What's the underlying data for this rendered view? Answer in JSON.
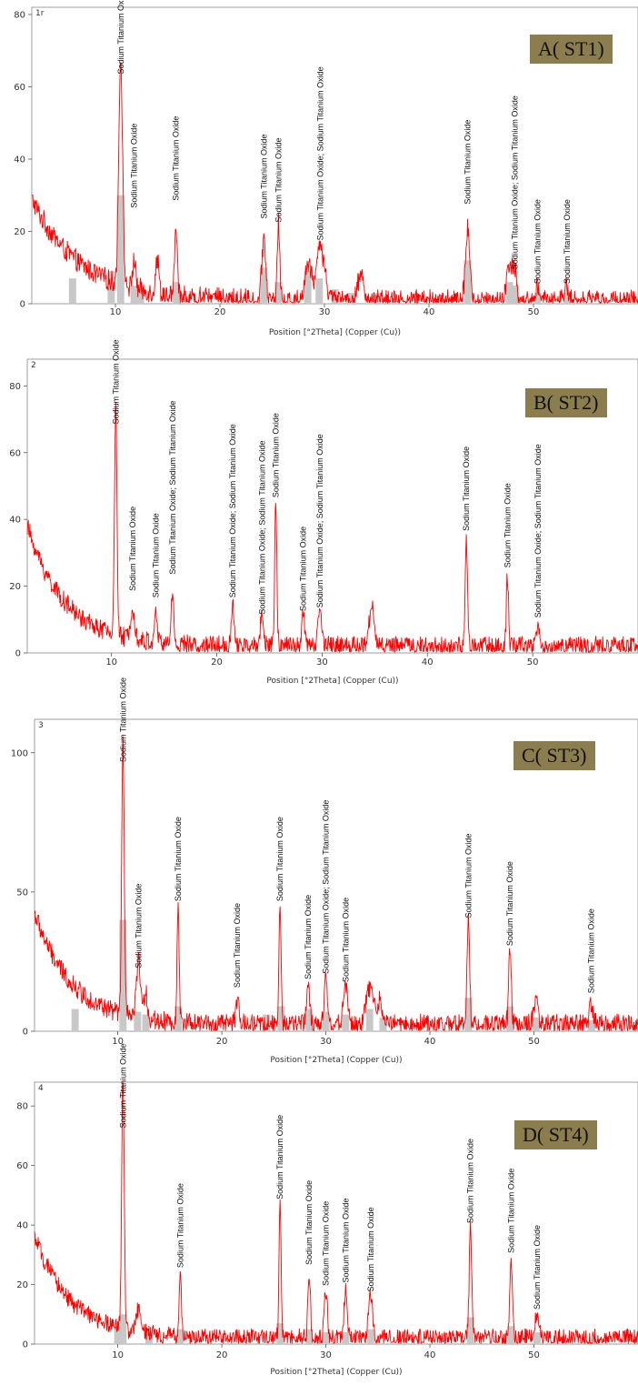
{
  "colors": {
    "trace": "#ff0000",
    "reference_bars": "#c8c8c8",
    "label_bg": "#8b7d4e"
  },
  "chart_data": [
    {
      "type": "line",
      "panel_label": "A( ST1)",
      "corner_label": "1r",
      "xlabel": "Position [°2Theta] (Copper (Cu))",
      "xlim": [
        2,
        60
      ],
      "ylim": [
        0,
        82
      ],
      "xticks": [
        10,
        20,
        30,
        40,
        50
      ],
      "yticks": [
        0,
        20,
        40,
        60,
        80
      ],
      "background": {
        "a": 28,
        "b": 1.0,
        "k": 0.22
      },
      "noise": 2.5,
      "peaks": [
        [
          10.5,
          63,
          0.18
        ],
        [
          11.8,
          8,
          0.15
        ],
        [
          14.0,
          10,
          0.15
        ],
        [
          15.8,
          20,
          0.12
        ],
        [
          24.2,
          17,
          0.18
        ],
        [
          25.6,
          21,
          0.12
        ],
        [
          28.5,
          10,
          0.35
        ],
        [
          29.5,
          14,
          0.25
        ],
        [
          30.0,
          8,
          0.25
        ],
        [
          33.5,
          7,
          0.3
        ],
        [
          43.7,
          20,
          0.2
        ],
        [
          47.7,
          10,
          0.25
        ],
        [
          48.2,
          8,
          0.2
        ],
        [
          50.4,
          4,
          0.2
        ],
        [
          53.2,
          4,
          0.2
        ]
      ],
      "reference_peaks": [
        [
          5.9,
          7
        ],
        [
          9.6,
          9
        ],
        [
          10.5,
          30
        ],
        [
          11.8,
          5
        ],
        [
          12.4,
          4
        ],
        [
          15.8,
          6
        ],
        [
          24.2,
          10
        ],
        [
          25.6,
          6
        ],
        [
          28.4,
          9
        ],
        [
          29.5,
          7
        ],
        [
          31.0,
          4
        ],
        [
          32.5,
          3
        ],
        [
          35.0,
          3
        ],
        [
          43.7,
          12
        ],
        [
          47.7,
          6
        ],
        [
          48.3,
          5
        ],
        [
          50.4,
          3
        ],
        [
          53.2,
          3
        ]
      ],
      "peak_labels": [
        {
          "x": 10.5,
          "y": 63,
          "text": "Sodium Titanium Oxide"
        },
        {
          "x": 11.8,
          "y": 26,
          "text": "Sodium Titanium Oxide"
        },
        {
          "x": 15.8,
          "y": 28,
          "text": "Sodium Titanium Oxide"
        },
        {
          "x": 24.2,
          "y": 23,
          "text": "Sodium Titanium Oxide"
        },
        {
          "x": 25.6,
          "y": 22,
          "text": "Sodium Titanium Oxide"
        },
        {
          "x": 29.6,
          "y": 17,
          "text": "Sodium Titanium Oxide; Sodium Titanium Oxide"
        },
        {
          "x": 43.7,
          "y": 27,
          "text": "Sodium Titanium Oxide"
        },
        {
          "x": 48.2,
          "y": 9,
          "text": "Sodium Titanium Oxide; Sodium Titanium Oxide"
        },
        {
          "x": 50.4,
          "y": 5,
          "text": "Sodium Titanium Oxide"
        },
        {
          "x": 53.2,
          "y": 5,
          "text": "Sodium Titanium Oxide"
        }
      ]
    },
    {
      "type": "line",
      "panel_label": "B( ST2)",
      "corner_label": "2",
      "xlabel": "Position [°2Theta] (Copper (Cu))",
      "xlim": [
        2,
        60
      ],
      "ylim": [
        0,
        88
      ],
      "xticks": [
        10,
        20,
        30,
        40,
        50
      ],
      "yticks": [
        0,
        20,
        40,
        60,
        80
      ],
      "background": {
        "a": 36,
        "b": 2.0,
        "k": 0.28
      },
      "noise": 2.5,
      "peaks": [
        [
          10.4,
          67,
          0.12
        ],
        [
          12.0,
          10,
          0.2
        ],
        [
          14.2,
          8,
          0.15
        ],
        [
          15.8,
          16,
          0.12
        ],
        [
          21.5,
          13,
          0.12
        ],
        [
          24.3,
          10,
          0.15
        ],
        [
          25.6,
          44,
          0.1
        ],
        [
          28.2,
          10,
          0.15
        ],
        [
          29.8,
          10,
          0.2
        ],
        [
          34.7,
          12,
          0.25
        ],
        [
          43.7,
          33,
          0.1
        ],
        [
          47.6,
          22,
          0.1
        ],
        [
          50.5,
          6,
          0.15
        ]
      ],
      "reference_peaks": [],
      "peak_labels": [
        {
          "x": 10.4,
          "y": 68,
          "text": "Sodium Titanium Oxide"
        },
        {
          "x": 12.0,
          "y": 18,
          "text": "Sodium Titanium Oxide"
        },
        {
          "x": 14.2,
          "y": 16,
          "text": "Sodium Titanium Oxide"
        },
        {
          "x": 15.8,
          "y": 23,
          "text": "Sodium Titanium Oxide; Sodium Titanium Oxide"
        },
        {
          "x": 21.5,
          "y": 16,
          "text": "Sodium Titanium Oxide; Sodium Titanium Oxide"
        },
        {
          "x": 24.3,
          "y": 11,
          "text": "Sodium Titanium Oxide; Sodium Titanium Oxide"
        },
        {
          "x": 25.6,
          "y": 46,
          "text": "Sodium Titanium Oxide"
        },
        {
          "x": 28.2,
          "y": 12,
          "text": "Sodium Titanium Oxide"
        },
        {
          "x": 29.8,
          "y": 13,
          "text": "Sodium Titanium Oxide; Sodium Titanium Oxide"
        },
        {
          "x": 43.7,
          "y": 36,
          "text": "Sodium Titanium Oxide"
        },
        {
          "x": 47.6,
          "y": 25,
          "text": "Sodium Titanium Oxide"
        },
        {
          "x": 50.5,
          "y": 10,
          "text": "Sodium Titanium Oxide; Sodium Titanium Oxide"
        }
      ]
    },
    {
      "type": "line",
      "panel_label": "C( ST3)",
      "corner_label": "3",
      "xlabel": "Position [°2Theta] (Copper (Cu))",
      "xlim": [
        2,
        60
      ],
      "ylim": [
        0,
        112
      ],
      "xticks": [
        10,
        20,
        30,
        40,
        50
      ],
      "yticks": [
        0,
        50,
        100
      ],
      "background": {
        "a": 40,
        "b": 2.5,
        "k": 0.28
      },
      "noise": 3.0,
      "peaks": [
        [
          10.5,
          97,
          0.12
        ],
        [
          12.0,
          20,
          0.2
        ],
        [
          12.7,
          10,
          0.15
        ],
        [
          15.8,
          43,
          0.1
        ],
        [
          21.5,
          9,
          0.15
        ],
        [
          25.6,
          43,
          0.1
        ],
        [
          28.3,
          14,
          0.15
        ],
        [
          30.0,
          17,
          0.15
        ],
        [
          31.9,
          14,
          0.2
        ],
        [
          34.2,
          13,
          0.35
        ],
        [
          35.2,
          8,
          0.3
        ],
        [
          43.7,
          39,
          0.12
        ],
        [
          47.7,
          28,
          0.12
        ],
        [
          50.2,
          8,
          0.2
        ],
        [
          55.5,
          7,
          0.2
        ]
      ],
      "reference_peaks": [
        [
          5.9,
          8
        ],
        [
          10.5,
          40
        ],
        [
          11.9,
          7
        ],
        [
          12.7,
          6
        ],
        [
          15.8,
          9
        ],
        [
          24.3,
          6
        ],
        [
          25.7,
          9
        ],
        [
          28.4,
          8
        ],
        [
          30.0,
          7
        ],
        [
          31.9,
          6
        ],
        [
          34.2,
          8
        ],
        [
          35.5,
          5
        ],
        [
          43.7,
          12
        ],
        [
          47.7,
          9
        ],
        [
          50.2,
          5
        ],
        [
          55.5,
          4
        ]
      ],
      "peak_labels": [
        {
          "x": 10.5,
          "y": 96,
          "text": "Sodium Titanium Oxide"
        },
        {
          "x": 12.0,
          "y": 22,
          "text": "Sodium Titanium Oxide"
        },
        {
          "x": 15.8,
          "y": 46,
          "text": "Sodium Titanium Oxide"
        },
        {
          "x": 21.5,
          "y": 15,
          "text": "Sodium Titanium Oxide"
        },
        {
          "x": 25.6,
          "y": 46,
          "text": "Sodium Titanium Oxide"
        },
        {
          "x": 28.3,
          "y": 18,
          "text": "Sodium Titanium Oxide"
        },
        {
          "x": 30.0,
          "y": 20,
          "text": "Sodium Titanium Oxide; Sodium Titanium Oxide"
        },
        {
          "x": 31.9,
          "y": 17,
          "text": "Sodium Titanium Oxide"
        },
        {
          "x": 43.7,
          "y": 40,
          "text": "Sodium Titanium Oxide"
        },
        {
          "x": 47.7,
          "y": 30,
          "text": "Sodium Titanium Oxide"
        },
        {
          "x": 55.5,
          "y": 13,
          "text": "Sodium Titanium Oxide"
        }
      ]
    },
    {
      "type": "line",
      "panel_label": "D( ST4)",
      "corner_label": "4",
      "xlabel": "Position [°2Theta] (Copper (Cu))",
      "xlim": [
        2,
        60
      ],
      "ylim": [
        0,
        88
      ],
      "xticks": [
        10,
        20,
        30,
        40,
        50
      ],
      "yticks": [
        0,
        20,
        40,
        60,
        80
      ],
      "background": {
        "a": 34,
        "b": 2.0,
        "k": 0.28
      },
      "noise": 2.5,
      "peaks": [
        [
          10.5,
          86,
          0.12
        ],
        [
          12.0,
          8,
          0.2
        ],
        [
          16.0,
          22,
          0.1
        ],
        [
          25.6,
          45,
          0.1
        ],
        [
          28.4,
          22,
          0.12
        ],
        [
          30.0,
          16,
          0.15
        ],
        [
          31.9,
          16,
          0.15
        ],
        [
          34.3,
          14,
          0.2
        ],
        [
          43.9,
          38,
          0.12
        ],
        [
          47.8,
          27,
          0.12
        ],
        [
          50.3,
          8,
          0.2
        ]
      ],
      "reference_peaks": [
        [
          10.0,
          6
        ],
        [
          10.5,
          10
        ],
        [
          13.0,
          4
        ],
        [
          16.0,
          5
        ],
        [
          25.6,
          7
        ],
        [
          28.4,
          5
        ],
        [
          30.0,
          4
        ],
        [
          31.9,
          4
        ],
        [
          34.3,
          5
        ],
        [
          43.9,
          9
        ],
        [
          47.8,
          6
        ],
        [
          50.3,
          4
        ]
      ],
      "peak_labels": [
        {
          "x": 10.5,
          "y": 72,
          "text": "Sodium Titanium Oxide"
        },
        {
          "x": 16.0,
          "y": 25,
          "text": "Sodium Titanium Oxide"
        },
        {
          "x": 25.6,
          "y": 48,
          "text": "Sodium Titanium Oxide"
        },
        {
          "x": 28.4,
          "y": 26,
          "text": "Sodium Titanium Oxide"
        },
        {
          "x": 30.0,
          "y": 19,
          "text": "Sodium Titanium Oxide"
        },
        {
          "x": 31.9,
          "y": 20,
          "text": "Sodium Titanium Oxide"
        },
        {
          "x": 34.3,
          "y": 17,
          "text": "Sodium Titanium Oxide"
        },
        {
          "x": 43.9,
          "y": 40,
          "text": "Sodium Titanium Oxide"
        },
        {
          "x": 47.8,
          "y": 30,
          "text": "Sodium Titanium Oxide"
        },
        {
          "x": 50.3,
          "y": 11,
          "text": "Sodium Titanium Oxide"
        }
      ]
    }
  ]
}
